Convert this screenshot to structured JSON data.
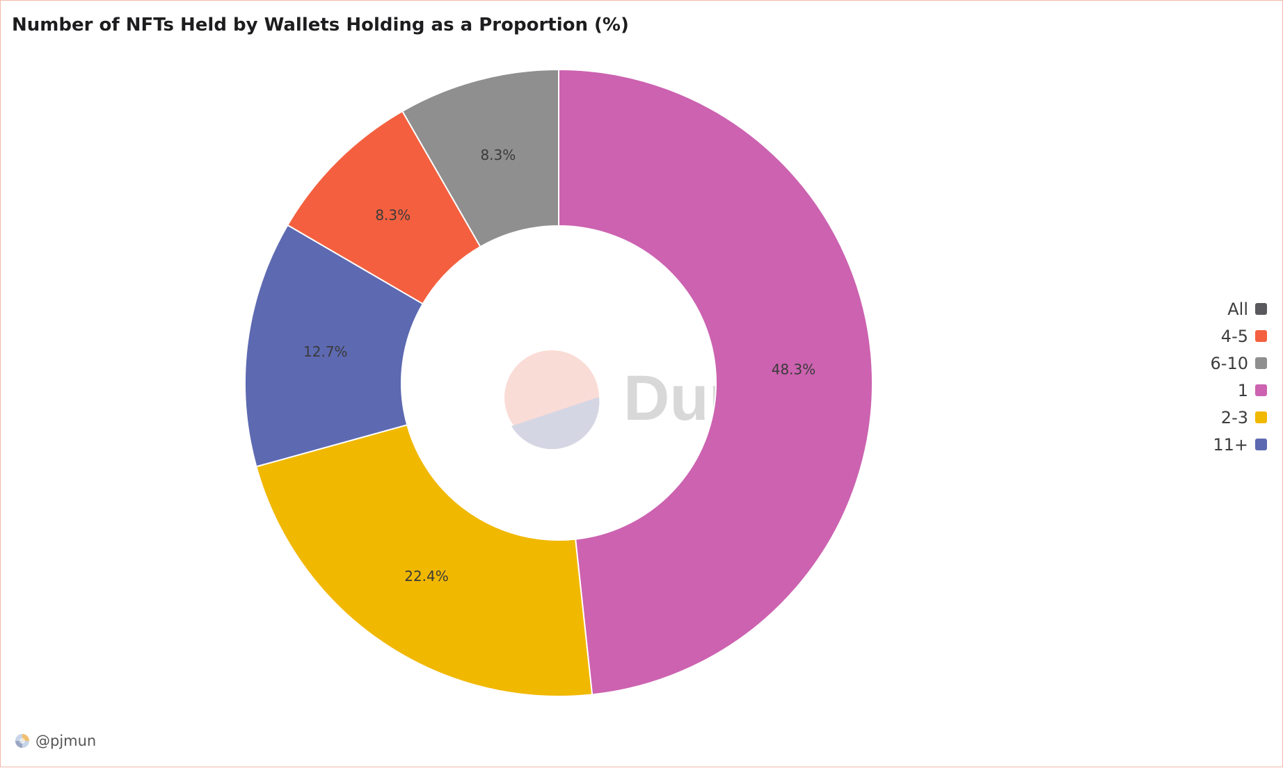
{
  "title": "Number of NFTs Held by Wallets Holding as a Proportion (%)",
  "footer": {
    "author": "@pjmun"
  },
  "watermark": {
    "text": "Dune"
  },
  "colors": {
    "all": "#5a5a5e",
    "c4_5": "#f4603f",
    "c6_10": "#8f8f8f",
    "c1": "#cc62b0",
    "c2_3": "#f1b800",
    "c11p": "#5d69b1"
  },
  "legend": [
    {
      "label": "All",
      "color": "#5a5a5e"
    },
    {
      "label": "4-5",
      "color": "#f4603f"
    },
    {
      "label": "6-10",
      "color": "#8f8f8f"
    },
    {
      "label": "1",
      "color": "#cc62b0"
    },
    {
      "label": "2-3",
      "color": "#f1b800"
    },
    {
      "label": "11+",
      "color": "#5d69b1"
    }
  ],
  "chart_data": {
    "type": "pie",
    "title": "Number of NFTs Held by Wallets Holding as a Proportion (%)",
    "donut": true,
    "categories": [
      "1",
      "2-3",
      "11+",
      "4-5",
      "6-10"
    ],
    "values": [
      48.3,
      22.4,
      12.7,
      8.3,
      8.3
    ],
    "labels": [
      "48.3%",
      "22.4%",
      "12.7%",
      "8.3%",
      "8.3%"
    ],
    "colors": [
      "#cc62b0",
      "#f1b800",
      "#5d69b1",
      "#f4603f",
      "#8f8f8f"
    ],
    "legend_position": "right"
  }
}
